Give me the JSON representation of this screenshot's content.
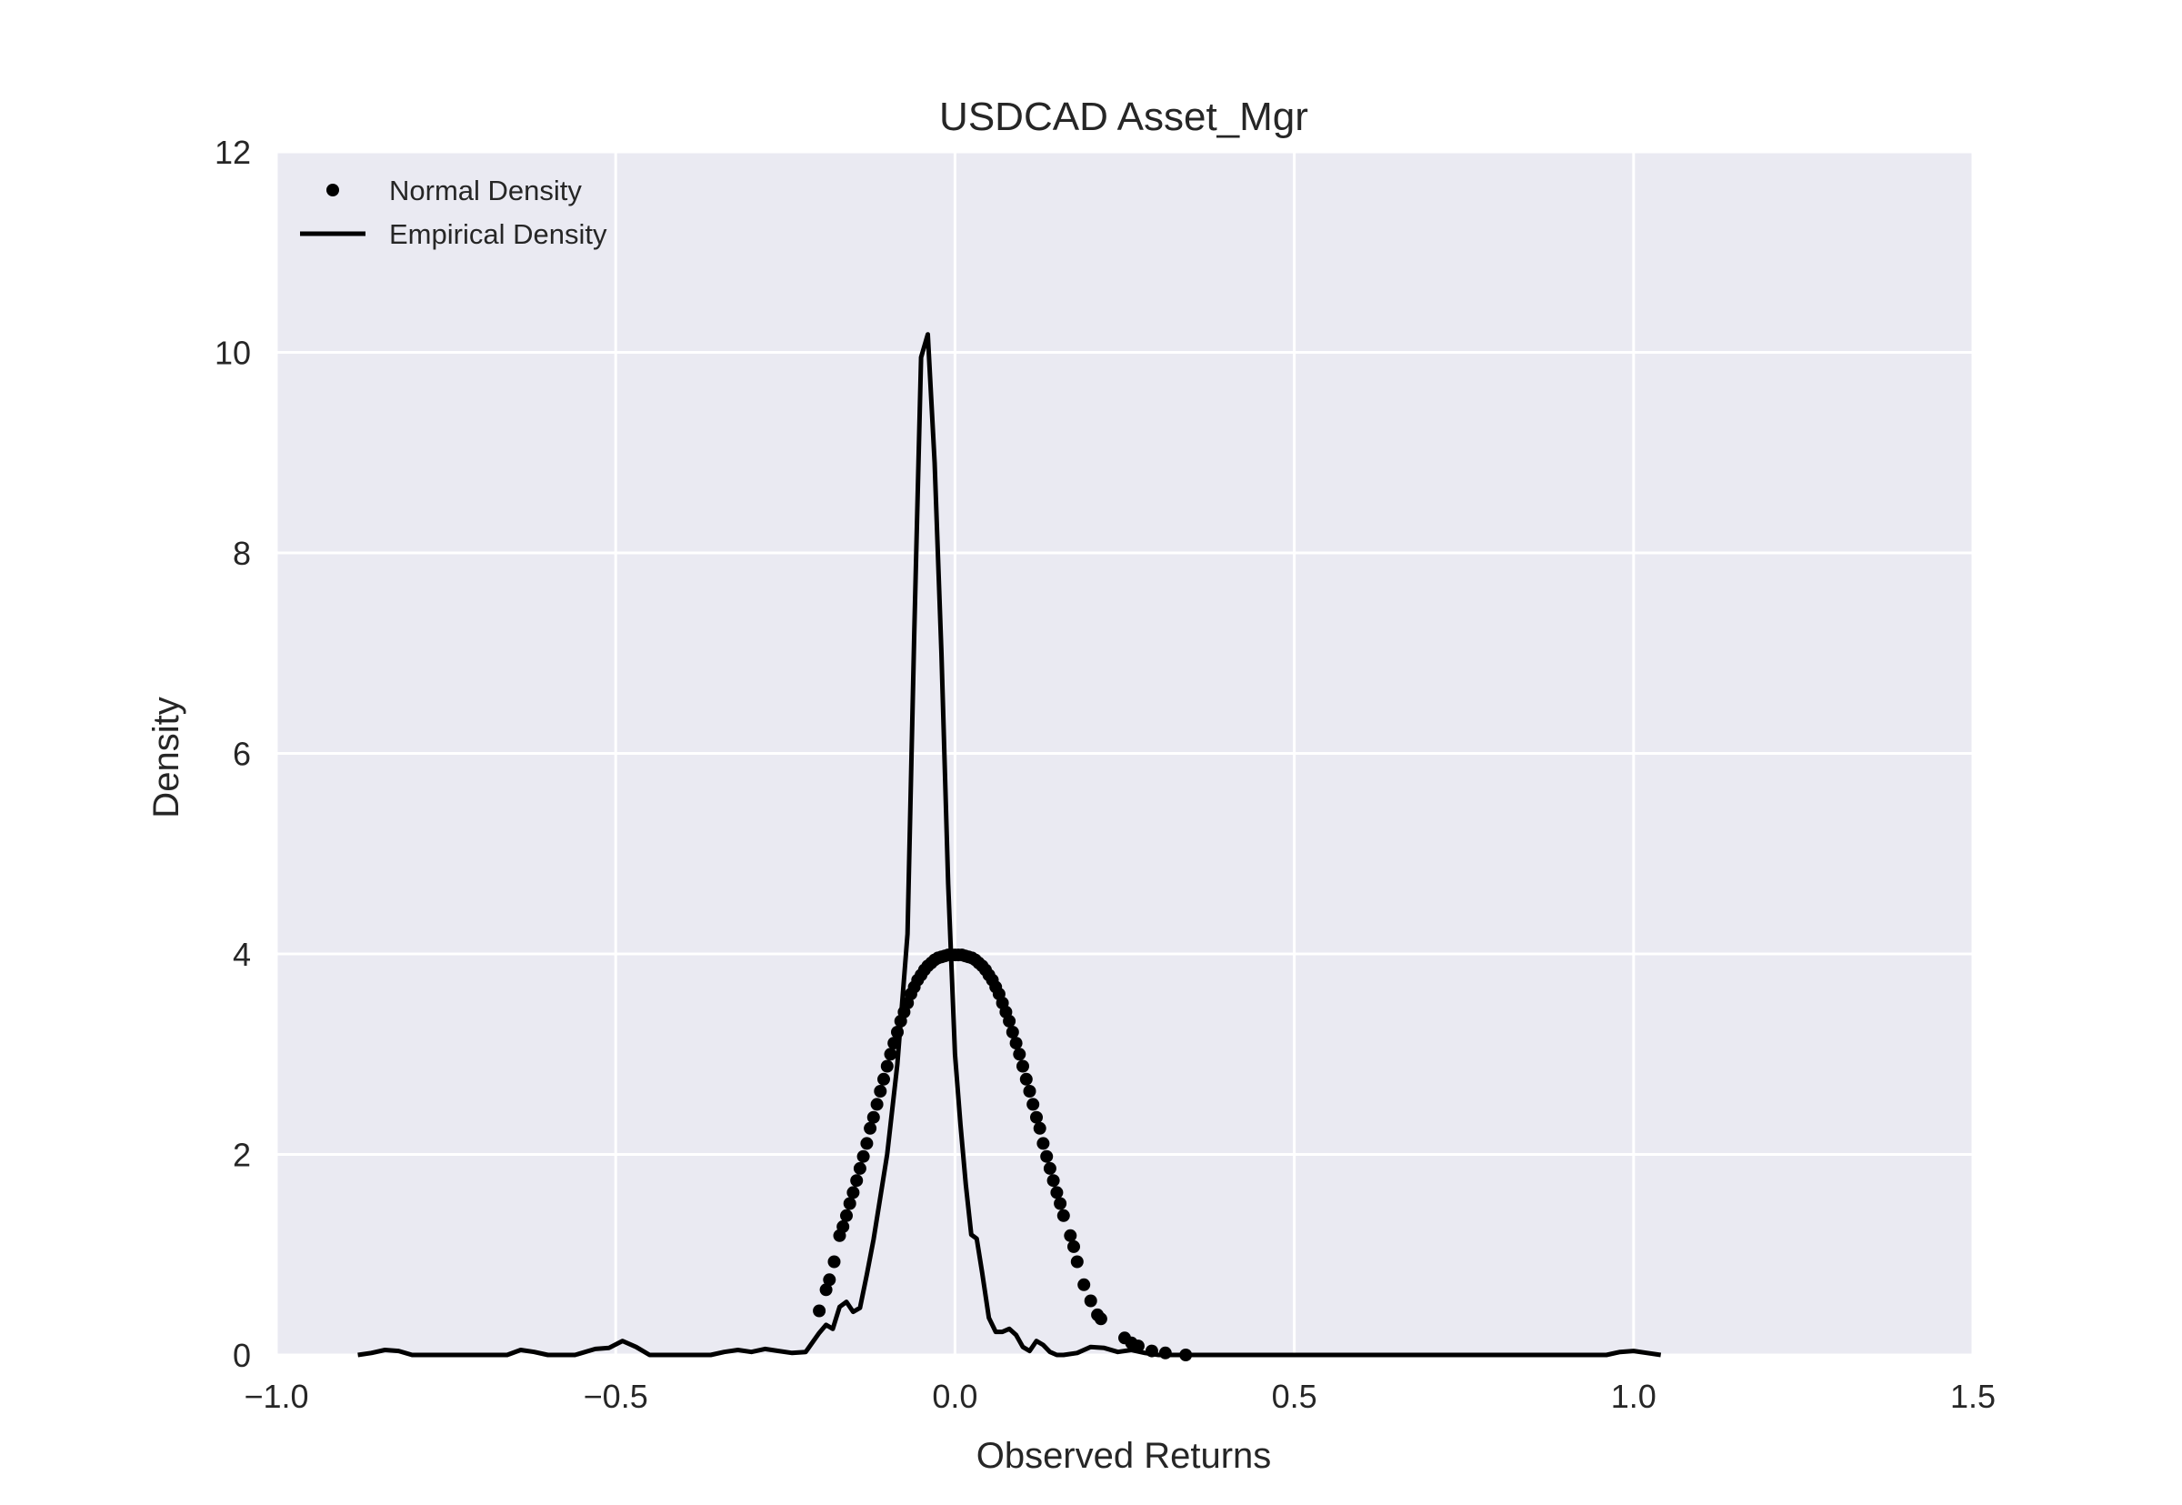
{
  "chart_data": {
    "type": "line",
    "title": "USDCAD Asset_Mgr",
    "xlabel": "Observed Returns",
    "ylabel": "Density",
    "xlim": [
      -1.0,
      1.5
    ],
    "ylim": [
      0,
      12
    ],
    "x_ticks": [
      -1.0,
      -0.5,
      0.0,
      0.5,
      1.0,
      1.5
    ],
    "x_tick_labels": [
      "−1.0",
      "−0.5",
      "0.0",
      "0.5",
      "1.0",
      "1.5"
    ],
    "y_ticks": [
      0,
      2,
      4,
      6,
      8,
      10,
      12
    ],
    "y_tick_labels": [
      "0",
      "2",
      "4",
      "6",
      "8",
      "10",
      "12"
    ],
    "grid": true,
    "legend_position": "top-left",
    "background_color": "#eaeaf2",
    "grid_color": "#ffffff",
    "series_color": "#000000",
    "series": [
      {
        "name": "Normal Density",
        "style": "dots",
        "mean": 0.0,
        "std": 0.1,
        "x": [
          -0.2,
          -0.19,
          -0.185,
          -0.178,
          -0.17,
          -0.165,
          -0.16,
          -0.155,
          -0.15,
          -0.145,
          -0.14,
          -0.135,
          -0.13,
          -0.125,
          -0.12,
          -0.115,
          -0.11,
          -0.105,
          -0.1,
          -0.095,
          -0.09,
          -0.085,
          -0.08,
          -0.075,
          -0.07,
          -0.065,
          -0.06,
          -0.055,
          -0.05,
          -0.045,
          -0.04,
          -0.035,
          -0.03,
          -0.025,
          -0.02,
          -0.015,
          -0.01,
          -0.005,
          0.0,
          0.005,
          0.01,
          0.015,
          0.02,
          0.025,
          0.03,
          0.035,
          0.04,
          0.045,
          0.05,
          0.055,
          0.06,
          0.065,
          0.07,
          0.075,
          0.08,
          0.085,
          0.09,
          0.095,
          0.1,
          0.105,
          0.11,
          0.115,
          0.12,
          0.125,
          0.13,
          0.135,
          0.14,
          0.145,
          0.15,
          0.155,
          0.16,
          0.17,
          0.175,
          0.18,
          0.19,
          0.2,
          0.21,
          0.215,
          0.25,
          0.26,
          0.27,
          0.29,
          0.31,
          0.34
        ],
        "y": [
          0.44,
          0.65,
          0.75,
          0.93,
          1.19,
          1.28,
          1.39,
          1.51,
          1.62,
          1.74,
          1.86,
          1.98,
          2.11,
          2.26,
          2.37,
          2.5,
          2.63,
          2.75,
          2.88,
          3.0,
          3.11,
          3.22,
          3.33,
          3.42,
          3.51,
          3.6,
          3.67,
          3.74,
          3.79,
          3.84,
          3.88,
          3.91,
          3.94,
          3.96,
          3.97,
          3.98,
          3.99,
          3.99,
          3.99,
          3.99,
          3.99,
          3.98,
          3.97,
          3.96,
          3.94,
          3.91,
          3.88,
          3.84,
          3.79,
          3.74,
          3.67,
          3.6,
          3.51,
          3.42,
          3.33,
          3.22,
          3.11,
          3.0,
          2.88,
          2.75,
          2.63,
          2.5,
          2.37,
          2.26,
          2.11,
          1.98,
          1.86,
          1.74,
          1.62,
          1.51,
          1.39,
          1.19,
          1.08,
          0.93,
          0.7,
          0.54,
          0.4,
          0.36,
          0.17,
          0.12,
          0.09,
          0.04,
          0.02,
          0.0
        ]
      },
      {
        "name": "Empirical Density",
        "style": "line",
        "x": [
          -0.88,
          -0.86,
          -0.84,
          -0.82,
          -0.8,
          -0.7,
          -0.66,
          -0.64,
          -0.62,
          -0.6,
          -0.56,
          -0.53,
          -0.51,
          -0.49,
          -0.47,
          -0.45,
          -0.42,
          -0.36,
          -0.34,
          -0.32,
          -0.3,
          -0.28,
          -0.26,
          -0.24,
          -0.22,
          -0.2,
          -0.19,
          -0.18,
          -0.17,
          -0.16,
          -0.15,
          -0.14,
          -0.13,
          -0.12,
          -0.1,
          -0.085,
          -0.07,
          -0.06,
          -0.05,
          -0.04,
          -0.03,
          -0.02,
          -0.01,
          0.0,
          0.008,
          0.016,
          0.024,
          0.032,
          0.04,
          0.05,
          0.06,
          0.07,
          0.08,
          0.09,
          0.1,
          0.11,
          0.12,
          0.13,
          0.14,
          0.15,
          0.16,
          0.18,
          0.2,
          0.22,
          0.24,
          0.26,
          0.28,
          0.3,
          0.32,
          0.34,
          0.36,
          0.38,
          0.4,
          0.42,
          0.5,
          0.6,
          0.7,
          0.8,
          0.9,
          0.96,
          0.98,
          1.0,
          1.02,
          1.04
        ],
        "y": [
          0.0,
          0.02,
          0.05,
          0.04,
          0.0,
          0.0,
          0.0,
          0.05,
          0.03,
          0.0,
          0.0,
          0.06,
          0.07,
          0.14,
          0.08,
          0.0,
          0.0,
          0.0,
          0.03,
          0.05,
          0.03,
          0.06,
          0.04,
          0.02,
          0.03,
          0.22,
          0.3,
          0.26,
          0.48,
          0.53,
          0.43,
          0.47,
          0.8,
          1.15,
          2.0,
          2.9,
          4.2,
          7.2,
          9.95,
          10.18,
          8.9,
          7.0,
          4.7,
          3.0,
          2.3,
          1.7,
          1.2,
          1.16,
          0.82,
          0.37,
          0.23,
          0.23,
          0.26,
          0.2,
          0.08,
          0.04,
          0.14,
          0.1,
          0.03,
          0.0,
          0.0,
          0.02,
          0.08,
          0.07,
          0.03,
          0.05,
          0.02,
          0.0,
          0.0,
          0.0,
          0.0,
          0.0,
          0.0,
          0.0,
          0.0,
          0.0,
          0.0,
          0.0,
          0.0,
          0.0,
          0.03,
          0.04,
          0.02,
          0.0
        ]
      }
    ]
  }
}
